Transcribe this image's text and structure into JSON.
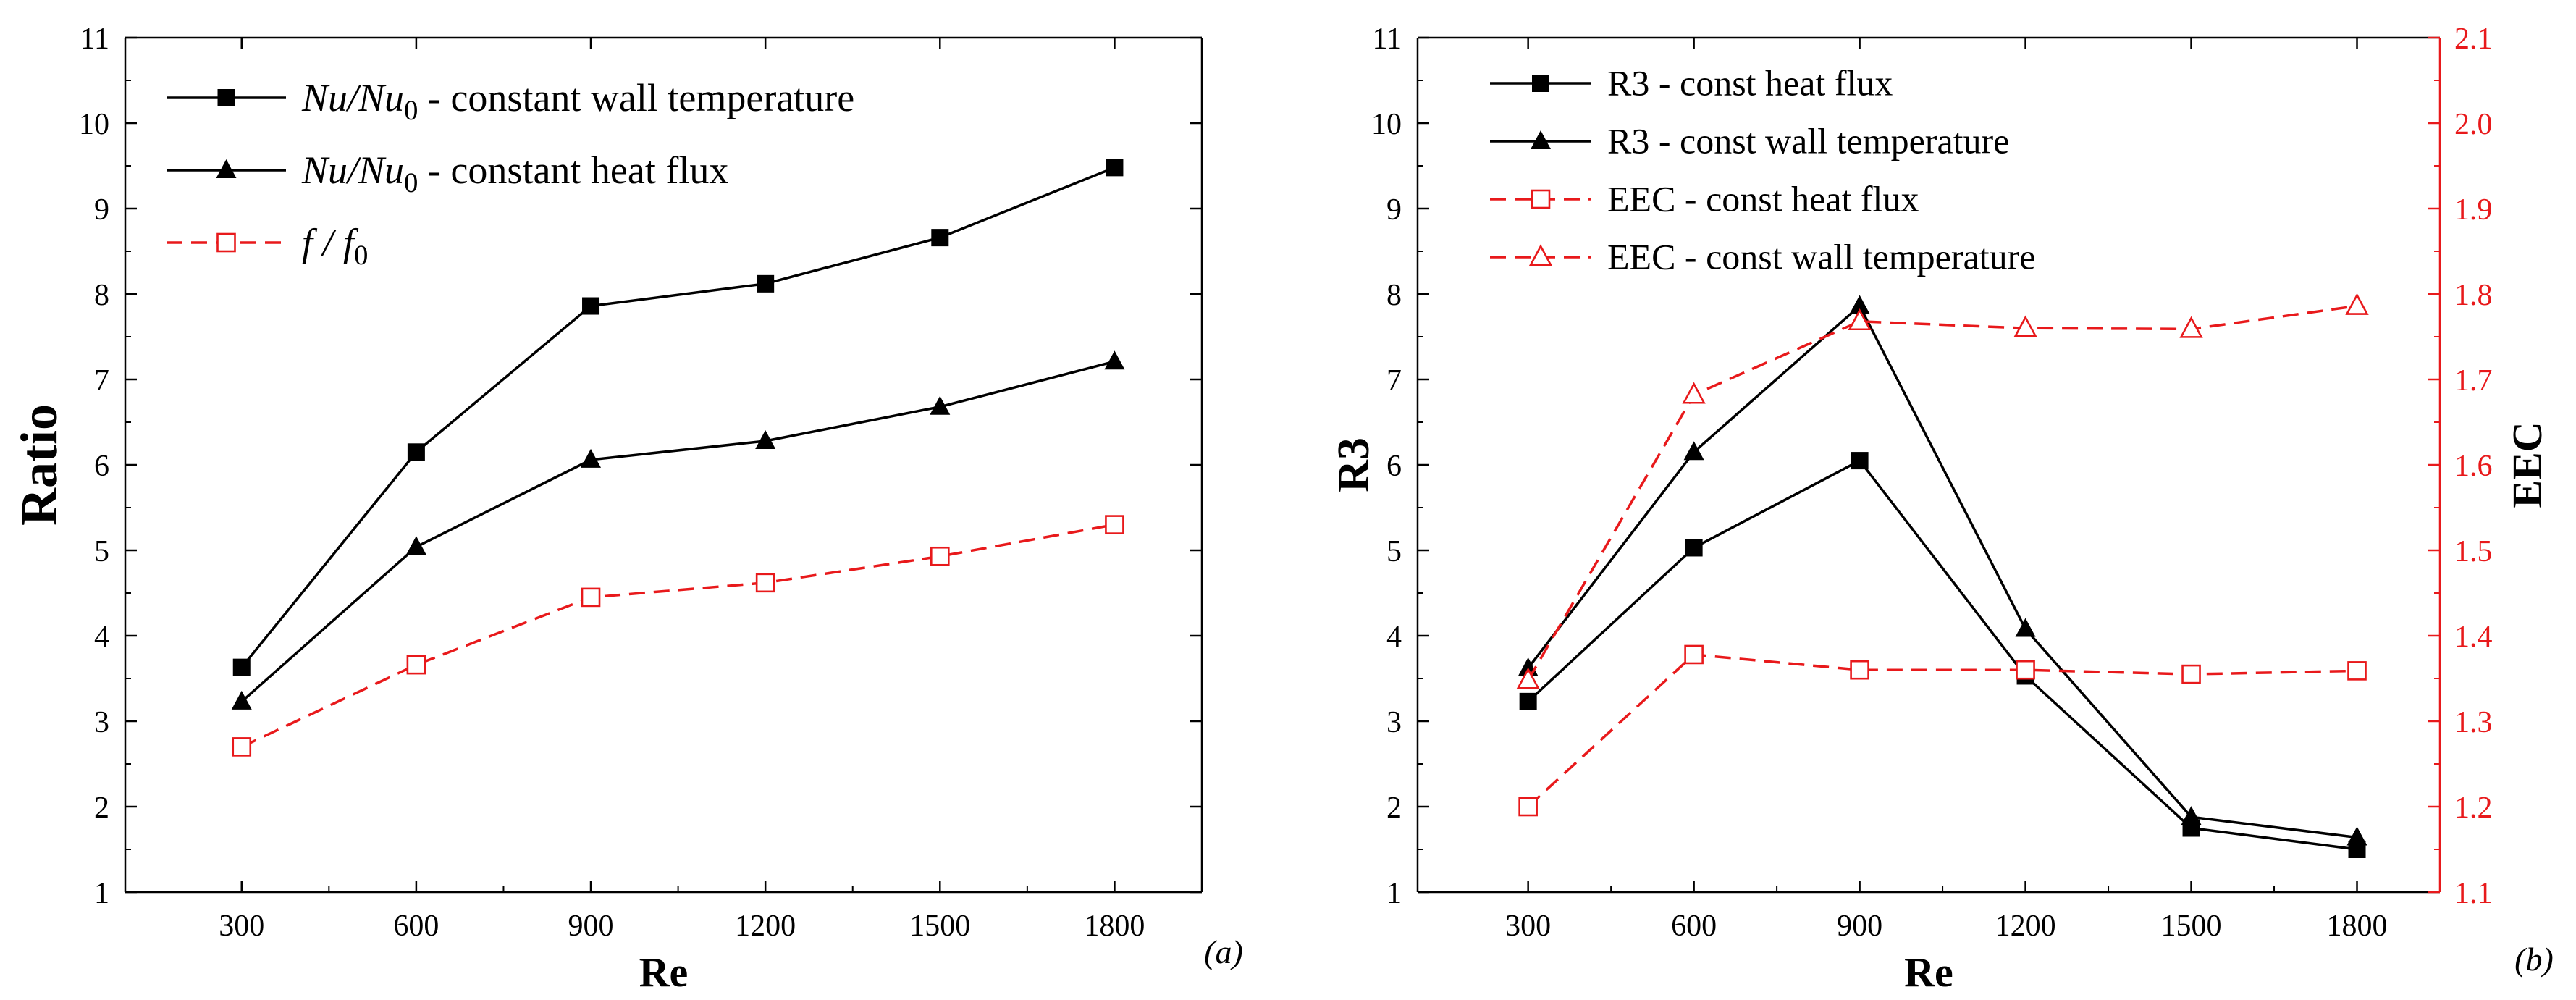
{
  "colors": {
    "black": "#000000",
    "red": "#e8191b"
  },
  "chart_data": [
    {
      "type": "line",
      "panel_label": "(a)",
      "xlabel": "Re",
      "ylabel": "Ratio",
      "x": [
        300,
        600,
        900,
        1200,
        1500,
        1800
      ],
      "xlim": [
        100,
        1950
      ],
      "ylim": [
        1,
        11
      ],
      "yticks": [
        1,
        2,
        3,
        4,
        5,
        6,
        7,
        8,
        9,
        10,
        11
      ],
      "legend_position": "top-left",
      "series": [
        {
          "name": "Nu/Nu0 - constant wall temperature",
          "legend_math": "Nu/Nu",
          "legend_sub": "0",
          "legend_text": " - constant wall temperature",
          "values": [
            3.63,
            6.15,
            7.86,
            8.12,
            8.66,
            9.48
          ],
          "color": "black",
          "marker": "square-filled",
          "dash": "solid"
        },
        {
          "name": "Nu/Nu0 - constant heat flux",
          "legend_math": "Nu/Nu",
          "legend_sub": "0",
          "legend_text": " - constant heat flux",
          "values": [
            3.23,
            5.04,
            6.06,
            6.28,
            6.68,
            7.21
          ],
          "color": "black",
          "marker": "triangle-filled",
          "dash": "solid"
        },
        {
          "name": "f/f0",
          "legend_math": "f / f",
          "legend_sub": "0",
          "legend_text": "",
          "values": [
            2.7,
            3.66,
            4.45,
            4.62,
            4.93,
            5.3
          ],
          "color": "red",
          "marker": "square-open",
          "dash": "dashed"
        }
      ]
    },
    {
      "type": "line",
      "panel_label": "(b)",
      "xlabel": "Re",
      "ylabel": "R3",
      "y2label": "EEC",
      "x": [
        300,
        600,
        900,
        1200,
        1500,
        1800
      ],
      "xlim": [
        100,
        1950
      ],
      "ylim": [
        1,
        11
      ],
      "yticks": [
        1,
        2,
        3,
        4,
        5,
        6,
        7,
        8,
        9,
        10,
        11
      ],
      "y2lim": [
        1.1,
        2.1
      ],
      "y2ticks": [
        1.1,
        1.2,
        1.3,
        1.4,
        1.5,
        1.6,
        1.7,
        1.8,
        1.9,
        2.0,
        2.1
      ],
      "legend_position": "top-left",
      "series": [
        {
          "name": "R3 - const heat flux",
          "values": [
            3.23,
            5.03,
            6.05,
            3.53,
            1.75,
            1.5
          ],
          "axis": "left",
          "color": "black",
          "marker": "square-filled",
          "dash": "solid"
        },
        {
          "name": "R3 - const wall temperature",
          "values": [
            3.62,
            6.15,
            7.86,
            4.08,
            1.88,
            1.64
          ],
          "axis": "left",
          "color": "black",
          "marker": "triangle-filled",
          "dash": "solid"
        },
        {
          "name": "EEC - const heat flux",
          "values": [
            1.2,
            1.378,
            1.36,
            1.36,
            1.355,
            1.359
          ],
          "axis": "right",
          "color": "red",
          "marker": "square-open",
          "dash": "dashed"
        },
        {
          "name": "EEC - const wall temperature",
          "values": [
            1.348,
            1.682,
            1.768,
            1.76,
            1.759,
            1.786
          ],
          "axis": "right",
          "color": "red",
          "marker": "triangle-open",
          "dash": "dashed"
        }
      ]
    }
  ]
}
